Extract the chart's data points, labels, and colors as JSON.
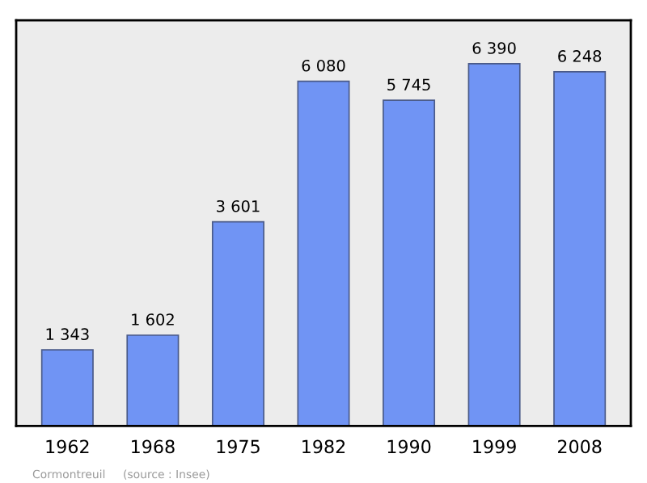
{
  "chart_data": {
    "type": "bar",
    "categories": [
      "1962",
      "1968",
      "1975",
      "1982",
      "1990",
      "1999",
      "2008"
    ],
    "values": [
      1343,
      1602,
      3601,
      6080,
      5745,
      6390,
      6248
    ],
    "value_labels": [
      "1 343",
      "1 602",
      "3 601",
      "6 080",
      "5 745",
      "6 390",
      "6 248"
    ],
    "color": "#7094f4",
    "grid": false,
    "legend": false,
    "tick_labels": "x",
    "annotations": [
      "Cormontreuil",
      "(source : Insee)"
    ]
  }
}
